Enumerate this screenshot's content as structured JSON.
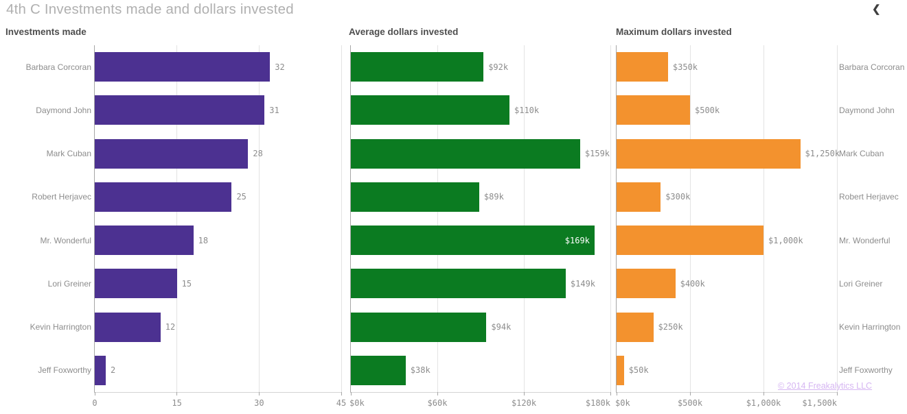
{
  "page": {
    "title": "4th C Investments made and dollars invested"
  },
  "icons": {
    "chevron_left": "❮"
  },
  "watermark": {
    "text": "© 2014 Freakalytics LLC"
  },
  "colors": {
    "investments_bar": "#4C3191",
    "average_bar": "#0B7B21",
    "maximum_bar": "#F3922E",
    "title_text": "#b0b0b0",
    "header_text": "#4d4d4d",
    "label_text": "#8c8c8c",
    "gridline": "#e3e3e3",
    "watermark_text": "#d6b6f2"
  },
  "categories": [
    "Barbara Corcoran",
    "Daymond John",
    "Mark Cuban",
    "Robert Herjavec",
    "Mr. Wonderful",
    "Lori Greiner",
    "Kevin Harrington",
    "Jeff Foxworthy"
  ],
  "chart_data": [
    {
      "type": "bar",
      "orientation": "horizontal",
      "title": "Investments made",
      "color": "#4C3191",
      "category_side": "left",
      "xlim": [
        0,
        45
      ],
      "tick_values": [
        0,
        15,
        30,
        45
      ],
      "tick_labels": [
        "0",
        "15",
        "30",
        "45"
      ],
      "categories": [
        "Barbara Corcoran",
        "Daymond John",
        "Mark Cuban",
        "Robert Herjavec",
        "Mr. Wonderful",
        "Lori Greiner",
        "Kevin Harrington",
        "Jeff Foxworthy"
      ],
      "values": [
        32,
        31,
        28,
        25,
        18,
        15,
        12,
        2
      ],
      "value_labels": [
        "32",
        "31",
        "28",
        "25",
        "18",
        "15",
        "12",
        "2"
      ],
      "grid": true,
      "legend": "none"
    },
    {
      "type": "bar",
      "orientation": "horizontal",
      "title": "Average dollars invested",
      "color": "#0B7B21",
      "category_side": "none",
      "xlim": [
        0,
        180
      ],
      "tick_values": [
        0,
        60,
        120,
        180
      ],
      "tick_labels": [
        "$0k",
        "$60k",
        "$120k",
        "$180k"
      ],
      "categories": [
        "Barbara Corcoran",
        "Daymond John",
        "Mark Cuban",
        "Robert Herjavec",
        "Mr. Wonderful",
        "Lori Greiner",
        "Kevin Harrington",
        "Jeff Foxworthy"
      ],
      "values": [
        92,
        110,
        159,
        89,
        169,
        149,
        94,
        38
      ],
      "value_labels": [
        "$92k",
        "$110k",
        "$159k",
        "$89k",
        "$169k",
        "$149k",
        "$94k",
        "$38k"
      ],
      "grid": true,
      "legend": "none"
    },
    {
      "type": "bar",
      "orientation": "horizontal",
      "title": "Maximum dollars invested",
      "color": "#F3922E",
      "category_side": "right",
      "xlim": [
        0,
        1500
      ],
      "tick_values": [
        0,
        500,
        1000,
        1500
      ],
      "tick_labels": [
        "$0k",
        "$500k",
        "$1,000k",
        "$1,500k"
      ],
      "categories": [
        "Barbara Corcoran",
        "Daymond John",
        "Mark Cuban",
        "Robert Herjavec",
        "Mr. Wonderful",
        "Lori Greiner",
        "Kevin Harrington",
        "Jeff Foxworthy"
      ],
      "values": [
        350,
        500,
        1250,
        300,
        1000,
        400,
        250,
        50
      ],
      "value_labels": [
        "$350k",
        "$500k",
        "$1,250k",
        "$300k",
        "$1,000k",
        "$400k",
        "$250k",
        "$50k"
      ],
      "grid": true,
      "legend": "none"
    }
  ]
}
